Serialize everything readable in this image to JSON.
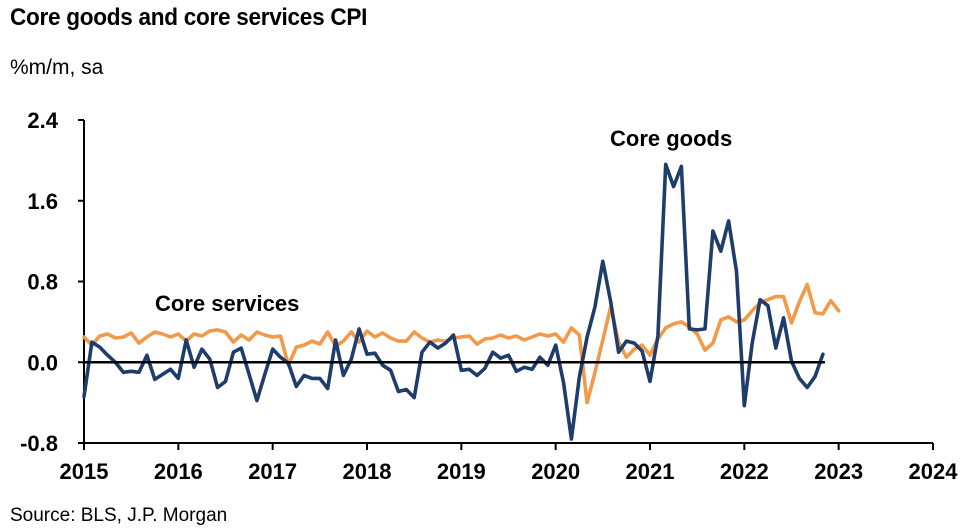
{
  "title": "Core goods and core services CPI",
  "subtitle": "%m/m, sa",
  "source": "Source: BLS, J.P. Morgan",
  "colors": {
    "core_goods": "#1f3d6b",
    "core_services": "#f2994a",
    "axis": "#000000"
  },
  "chart_data": {
    "type": "line",
    "title": "Core goods and core services CPI",
    "ylabel": "%m/m, sa",
    "ylim": [
      -0.8,
      2.4
    ],
    "yticks": [
      "2.4",
      "1.6",
      "0.8",
      "0.0",
      "-0.8"
    ],
    "xlim": [
      2015,
      2024
    ],
    "xticks": [
      "2015",
      "2016",
      "2017",
      "2018",
      "2019",
      "2020",
      "2021",
      "2022",
      "2023",
      "2024"
    ],
    "start": "2015-01",
    "frequency": "monthly",
    "annotations": [
      {
        "text": "Core goods",
        "series": "core_goods"
      },
      {
        "text": "Core services",
        "series": "core_services"
      }
    ],
    "series": [
      {
        "name": "Core goods",
        "key": "core_goods",
        "values": [
          -0.34,
          0.2,
          0.15,
          0.07,
          0.0,
          -0.1,
          -0.09,
          -0.1,
          0.07,
          -0.17,
          -0.12,
          -0.07,
          -0.16,
          0.22,
          -0.05,
          0.13,
          0.03,
          -0.25,
          -0.19,
          0.1,
          0.14,
          -0.12,
          -0.38,
          -0.12,
          0.13,
          0.05,
          -0.01,
          -0.24,
          -0.13,
          -0.16,
          -0.16,
          -0.26,
          0.22,
          -0.13,
          0.03,
          0.33,
          0.08,
          0.09,
          -0.03,
          -0.08,
          -0.29,
          -0.27,
          -0.35,
          0.1,
          0.2,
          0.14,
          0.19,
          0.27,
          -0.08,
          -0.07,
          -0.13,
          -0.06,
          0.1,
          0.04,
          0.07,
          -0.09,
          -0.05,
          -0.07,
          0.05,
          -0.03,
          0.17,
          -0.2,
          -0.76,
          -0.15,
          0.25,
          0.55,
          1.0,
          0.6,
          0.1,
          0.21,
          0.19,
          0.11,
          -0.19,
          0.26,
          1.96,
          1.74,
          1.94,
          0.33,
          0.32,
          0.33,
          1.3,
          1.1,
          1.4,
          0.9,
          -0.43,
          0.19,
          0.62,
          0.56,
          0.14,
          0.44,
          0.01,
          -0.16,
          -0.25,
          -0.14,
          0.08
        ]
      },
      {
        "name": "Core services",
        "key": "core_services",
        "values": [
          0.25,
          0.17,
          0.26,
          0.28,
          0.24,
          0.25,
          0.29,
          0.19,
          0.25,
          0.3,
          0.28,
          0.25,
          0.28,
          0.21,
          0.28,
          0.26,
          0.31,
          0.32,
          0.3,
          0.2,
          0.27,
          0.22,
          0.3,
          0.27,
          0.25,
          0.26,
          -0.03,
          0.15,
          0.17,
          0.21,
          0.18,
          0.3,
          0.16,
          0.21,
          0.3,
          0.2,
          0.31,
          0.25,
          0.29,
          0.24,
          0.21,
          0.21,
          0.3,
          0.24,
          0.2,
          0.22,
          0.21,
          0.24,
          0.25,
          0.26,
          0.18,
          0.23,
          0.24,
          0.27,
          0.24,
          0.26,
          0.22,
          0.25,
          0.28,
          0.26,
          0.28,
          0.2,
          0.34,
          0.27,
          -0.4,
          -0.1,
          0.22,
          0.55,
          0.2,
          0.05,
          0.13,
          0.17,
          0.07,
          0.23,
          0.34,
          0.38,
          0.4,
          0.35,
          0.28,
          0.12,
          0.19,
          0.42,
          0.45,
          0.4,
          0.42,
          0.51,
          0.59,
          0.62,
          0.65,
          0.65,
          0.39,
          0.6,
          0.77,
          0.49,
          0.48,
          0.61,
          0.51
        ]
      }
    ]
  }
}
